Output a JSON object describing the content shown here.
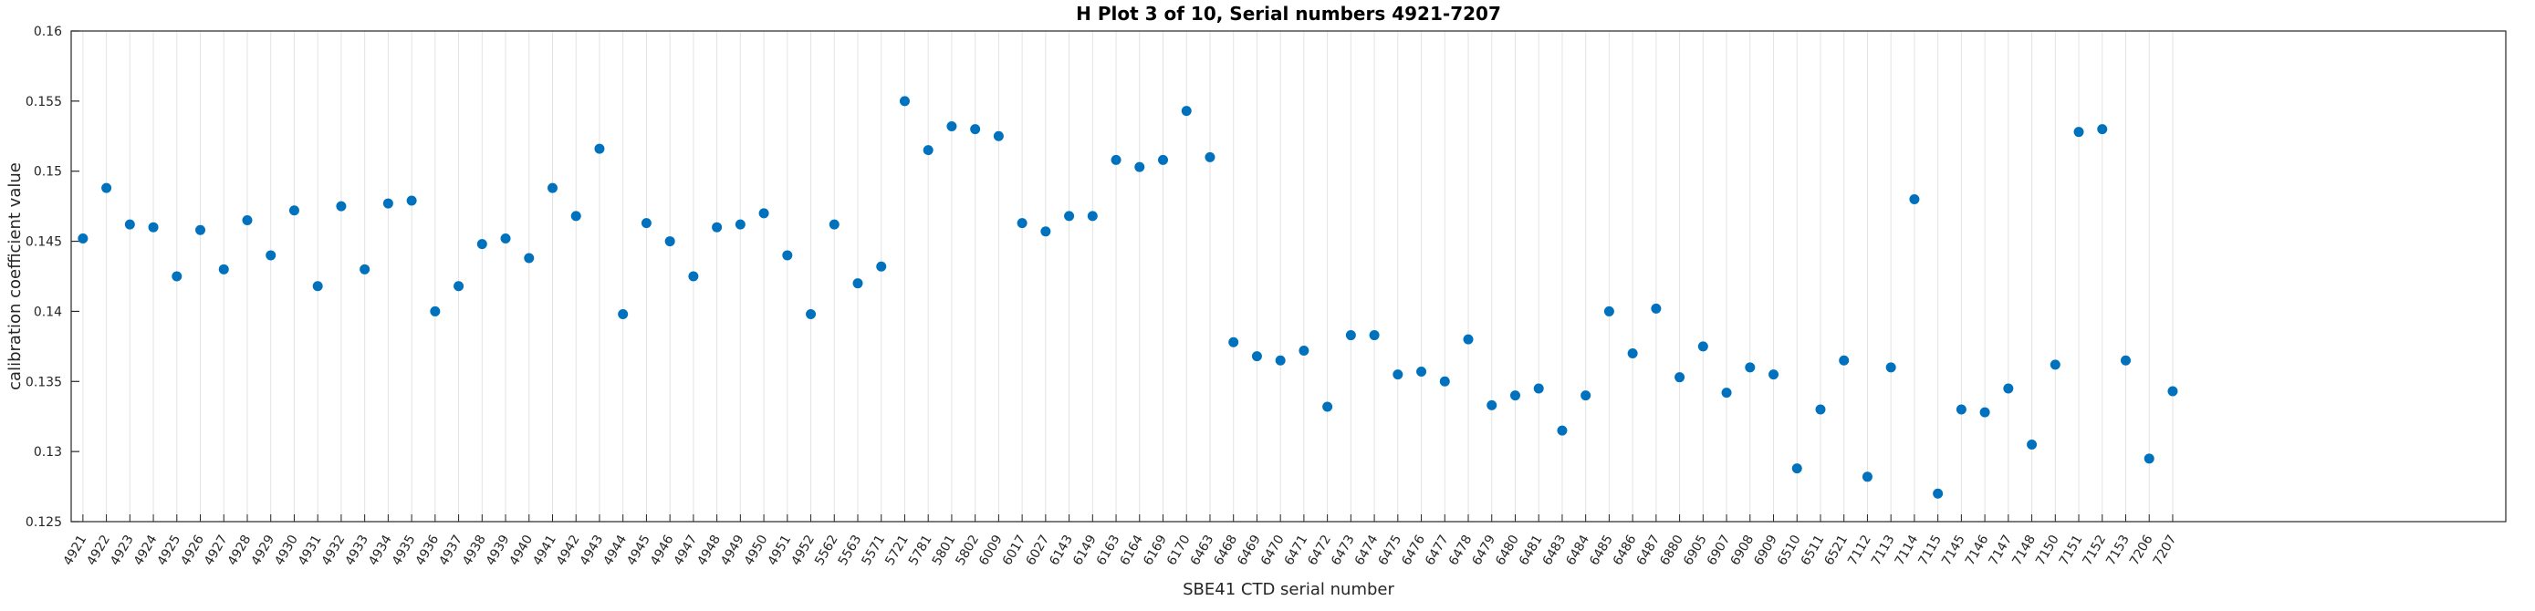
{
  "figure": {
    "title": "H Plot 3 of 10, Serial numbers 4921-7207",
    "xlabel": "SBE41 CTD serial number",
    "ylabel": "calibration coefficient value"
  },
  "chart_data": {
    "type": "scatter",
    "title": "H Plot 3 of 10, Serial numbers 4921-7207",
    "xlabel": "SBE41 CTD serial number",
    "ylabel": "calibration coefficient value",
    "ylim": [
      0.125,
      0.16
    ],
    "yticks": [
      0.125,
      0.13,
      0.135,
      0.14,
      0.145,
      0.15,
      0.155,
      0.16
    ],
    "ytick_labels": [
      "0.125",
      "0.13",
      "0.135",
      "0.14",
      "0.145",
      "0.15",
      "0.155",
      "0.16"
    ],
    "grid": "vertical-only",
    "legend": "none",
    "marker": "filled-circle",
    "marker_color": "#0072BD",
    "axis_color": "#262626",
    "grid_color": "#e3e3e3",
    "x_data_fraction": 0.868,
    "categories": [
      "4921",
      "4922",
      "4923",
      "4924",
      "4925",
      "4926",
      "4927",
      "4928",
      "4929",
      "4930",
      "4931",
      "4932",
      "4933",
      "4934",
      "4935",
      "4936",
      "4937",
      "4938",
      "4939",
      "4940",
      "4941",
      "4942",
      "4943",
      "4944",
      "4945",
      "4946",
      "4947",
      "4948",
      "4949",
      "4950",
      "4951",
      "4952",
      "5562",
      "5563",
      "5571",
      "5721",
      "5781",
      "5801",
      "5802",
      "6009",
      "6017",
      "6027",
      "6143",
      "6149",
      "6163",
      "6164",
      "6169",
      "6170",
      "6463",
      "6468",
      "6469",
      "6470",
      "6471",
      "6472",
      "6473",
      "6474",
      "6475",
      "6476",
      "6477",
      "6478",
      "6479",
      "6480",
      "6481",
      "6483",
      "6484",
      "6485",
      "6486",
      "6487",
      "6880",
      "6905",
      "6907",
      "6908",
      "6909",
      "6510",
      "6511",
      "6521",
      "7112",
      "7113",
      "7114",
      "7115",
      "7145",
      "7146",
      "7147",
      "7148",
      "7150",
      "7151",
      "7152",
      "7153",
      "7206",
      "7207"
    ],
    "values": [
      0.1452,
      0.1488,
      0.1462,
      0.146,
      0.1425,
      0.1458,
      0.143,
      0.1465,
      0.144,
      0.1472,
      0.1418,
      0.1475,
      0.143,
      0.1477,
      0.1479,
      0.14,
      0.1418,
      0.1448,
      0.1452,
      0.1438,
      0.1488,
      0.1468,
      0.1516,
      0.1398,
      0.1463,
      0.145,
      0.1425,
      0.146,
      0.1462,
      0.147,
      0.144,
      0.1398,
      0.1462,
      0.142,
      0.1432,
      0.155,
      0.1515,
      0.1532,
      0.153,
      0.1525,
      0.1463,
      0.1457,
      0.1468,
      0.1468,
      0.1508,
      0.1503,
      0.1508,
      0.1543,
      0.151,
      0.1378,
      0.1368,
      0.1365,
      0.1372,
      0.1332,
      0.1383,
      0.1383,
      0.1355,
      0.1357,
      0.135,
      0.138,
      0.1333,
      0.134,
      0.1345,
      0.1315,
      0.134,
      0.14,
      0.137,
      0.1402,
      0.1353,
      0.1375,
      0.1342,
      0.136,
      0.1355,
      0.1288,
      0.133,
      0.1365,
      0.1282,
      0.136,
      0.148,
      0.127,
      0.133,
      0.1328,
      0.1345,
      0.1305,
      0.1362,
      0.1528,
      0.153,
      0.1365,
      0.1295,
      0.1343
    ]
  }
}
